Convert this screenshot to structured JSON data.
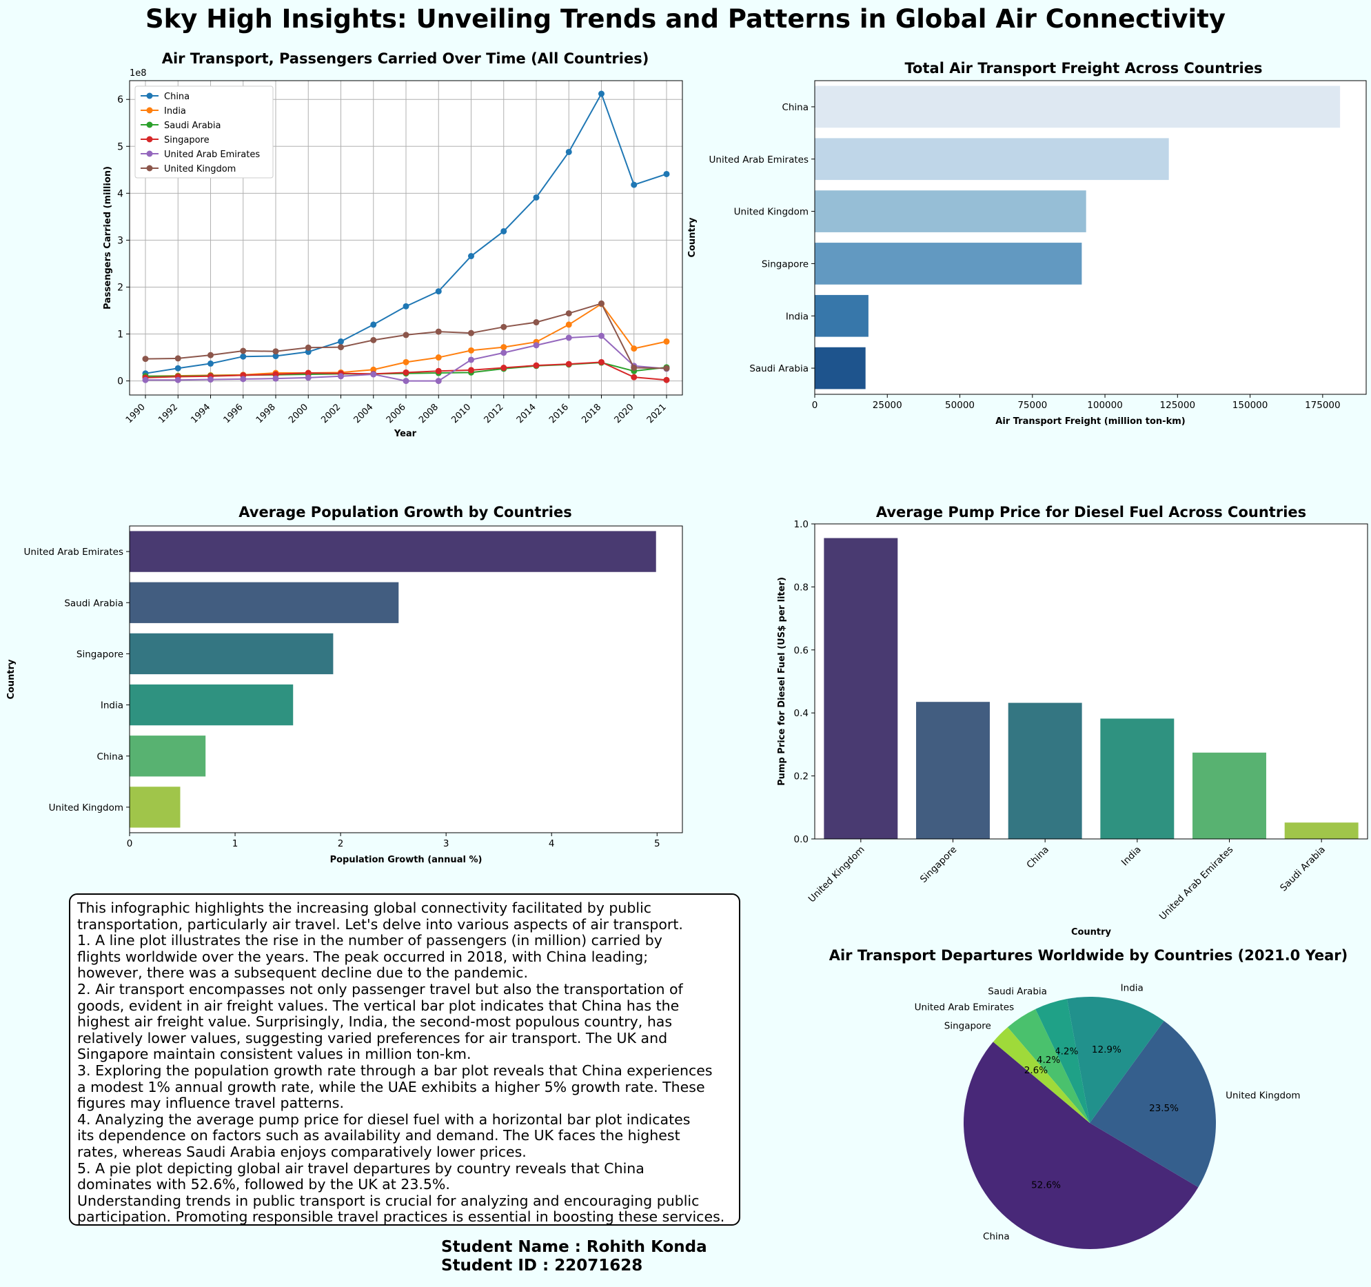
{
  "title": "Sky High Insights: Unveiling Trends and Patterns in Global Air Connectivity",
  "chart_data": [
    {
      "type": "line",
      "title": "Air Transport, Passengers Carried Over Time (All Countries)",
      "xlabel": "Year",
      "ylabel": "Passengers Carried (million)",
      "offset_label": "1e8",
      "x": [
        "1990",
        "1992",
        "1994",
        "1996",
        "1998",
        "2000",
        "2002",
        "2004",
        "2006",
        "2008",
        "2010",
        "2012",
        "2014",
        "2016",
        "2018",
        "2020",
        "2021"
      ],
      "yticks": [
        "0",
        "1",
        "2",
        "3",
        "4",
        "5",
        "6"
      ],
      "ylim": [
        -0.3,
        6.4
      ],
      "grid": true,
      "legend": "upper-left",
      "series": [
        {
          "name": "China",
          "color": "#1f77b4",
          "values": [
            0.16,
            0.27,
            0.37,
            0.52,
            0.53,
            0.62,
            0.84,
            1.2,
            1.59,
            1.91,
            2.66,
            3.19,
            3.91,
            4.88,
            6.12,
            4.18,
            4.41
          ]
        },
        {
          "name": "India",
          "color": "#ff7f0e",
          "values": [
            0.1,
            0.11,
            0.12,
            0.13,
            0.17,
            0.17,
            0.18,
            0.24,
            0.4,
            0.5,
            0.65,
            0.72,
            0.83,
            1.2,
            1.64,
            0.69,
            0.84
          ]
        },
        {
          "name": "Saudi Arabia",
          "color": "#2ca02c",
          "values": [
            0.1,
            0.1,
            0.11,
            0.12,
            0.13,
            0.14,
            0.15,
            0.15,
            0.16,
            0.17,
            0.18,
            0.26,
            0.32,
            0.35,
            0.39,
            0.21,
            0.29
          ]
        },
        {
          "name": "Singapore",
          "color": "#d62728",
          "values": [
            0.07,
            0.09,
            0.1,
            0.12,
            0.14,
            0.17,
            0.16,
            0.15,
            0.18,
            0.21,
            0.23,
            0.28,
            0.33,
            0.36,
            0.4,
            0.08,
            0.02
          ]
        },
        {
          "name": "United Arab Emirates",
          "color": "#9467bd",
          "values": [
            0.02,
            0.02,
            0.03,
            0.04,
            0.05,
            0.07,
            0.1,
            0.14,
            0.0,
            0.0,
            0.45,
            0.6,
            0.76,
            0.92,
            0.96,
            0.32,
            0.26
          ]
        },
        {
          "name": "United Kingdom",
          "color": "#8c564b",
          "values": [
            0.47,
            0.48,
            0.55,
            0.64,
            0.63,
            0.71,
            0.72,
            0.87,
            0.98,
            1.05,
            1.02,
            1.15,
            1.25,
            1.44,
            1.65,
            0.28,
            0.27
          ]
        }
      ]
    },
    {
      "type": "bar",
      "orientation": "horizontal",
      "title": "Total Air Transport Freight Across Countries",
      "xlabel": "Air Transport Freight (million ton-km)",
      "ylabel": "Country",
      "categories": [
        "China",
        "United Arab Emirates",
        "United Kingdom",
        "Singapore",
        "India",
        "Saudi Arabia"
      ],
      "values": [
        181000,
        122000,
        93500,
        92000,
        18500,
        17500
      ],
      "colors": [
        "#dee8f2",
        "#bfd6e8",
        "#96bed6",
        "#6299c1",
        "#3777aa",
        "#1e548d"
      ],
      "xticks": [
        "0",
        "25000",
        "50000",
        "75000",
        "100000",
        "125000",
        "150000",
        "175000"
      ],
      "xlim": [
        0,
        190000
      ]
    },
    {
      "type": "bar",
      "orientation": "horizontal",
      "title": "Average Population Growth by Countries",
      "xlabel": "Population Growth (annual %)",
      "ylabel": "Country",
      "categories": [
        "United Arab Emirates",
        "Saudi Arabia",
        "Singapore",
        "India",
        "China",
        "United Kingdom"
      ],
      "values": [
        4.99,
        2.55,
        1.93,
        1.55,
        0.72,
        0.48
      ],
      "colors": [
        "#493a71",
        "#425d80",
        "#347682",
        "#2f9280",
        "#58b271",
        "#a0c54a"
      ],
      "xticks": [
        "0",
        "1",
        "2",
        "3",
        "4",
        "5"
      ],
      "xlim": [
        0,
        5.24
      ]
    },
    {
      "type": "bar",
      "title": "Average Pump Price for Diesel Fuel Across Countries",
      "xlabel": "Country",
      "ylabel": "Pump Price for Diesel Fuel (US$ per liter)",
      "categories": [
        "United Kingdom",
        "Singapore",
        "China",
        "India",
        "United Arab Emirates",
        "Saudi Arabia"
      ],
      "values": [
        0.955,
        0.435,
        0.432,
        0.382,
        0.274,
        0.052
      ],
      "colors": [
        "#493a71",
        "#425d80",
        "#347682",
        "#2f9280",
        "#58b271",
        "#a0c54a"
      ],
      "yticks": [
        "0.0",
        "0.2",
        "0.4",
        "0.6",
        "0.8",
        "1.0"
      ],
      "ylim": [
        0,
        1.0
      ]
    },
    {
      "type": "pie",
      "title": "Air Transport Departures Worldwide by Countries (2021.0 Year)",
      "categories": [
        "China",
        "United Kingdom",
        "India",
        "Saudi Arabia",
        "United Arab Emirates",
        "Singapore"
      ],
      "values": [
        52.6,
        23.5,
        12.9,
        4.2,
        4.2,
        2.6
      ],
      "labels": [
        "52.6%",
        "23.5%",
        "12.9%",
        "4.2%",
        "4.2%",
        "2.6%"
      ],
      "colors": [
        "#482878",
        "#355f8d",
        "#21918c",
        "#1fa187",
        "#4ac16d",
        "#9fda3a"
      ]
    }
  ],
  "description": [
    "This infographic highlights the increasing global connectivity facilitated by public",
    "transportation, particularly air travel. Let's delve into various aspects of air transport.",
    "1. A line plot illustrates the rise in the number of passengers (in million) carried by",
    "flights worldwide over the years. The peak occurred in 2018, with China leading;",
    "however, there was a subsequent decline due to the pandemic.",
    "2. Air transport encompasses not only passenger travel but also the transportation of",
    "goods, evident in air freight values. The vertical bar plot indicates that China has the",
    "highest air freight value. Surprisingly, India, the second-most populous country, has",
    "relatively lower values, suggesting varied preferences for air transport. The UK and",
    "Singapore maintain consistent values in million ton-km.",
    "3. Exploring the population growth rate through a bar plot reveals that China experiences",
    "a modest 1% annual growth rate, while the UAE exhibits a higher 5% growth rate. These",
    "figures may influence travel patterns.",
    "4. Analyzing the average pump price for diesel fuel with a horizontal bar plot indicates",
    "its dependence on factors such as availability and demand. The UK faces the highest",
    "rates, whereas Saudi Arabia enjoys comparatively lower prices.",
    "5. A pie plot depicting global air travel departures by country reveals that China",
    "dominates with 52.6%, followed by the UK at 23.5%.",
    "Understanding trends in public transport is crucial for analyzing and encouraging public",
    "participation. Promoting responsible travel practices is essential in boosting these services."
  ],
  "student": {
    "name": "Student Name : Rohith Konda",
    "id": "Student ID : 22071628"
  }
}
